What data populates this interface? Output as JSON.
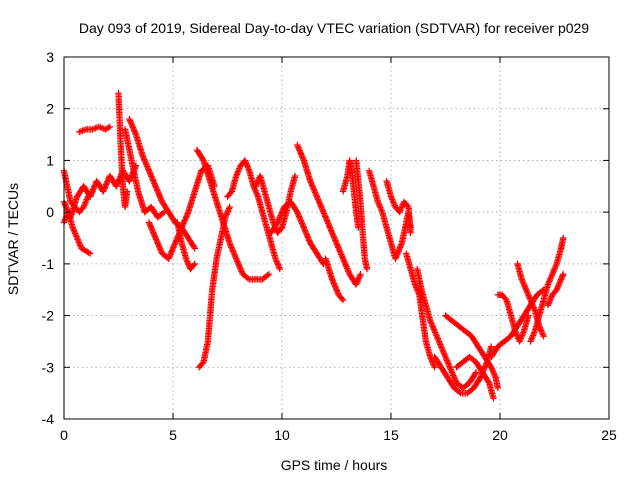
{
  "chart_data": {
    "type": "scatter",
    "title": "Day 093 of 2019, Sidereal Day-to-day VTEC variation (SDTVAR) for receiver p029",
    "xlabel": "GPS time / hours",
    "ylabel": "SDTVAR / TECUs",
    "xlim": [
      0,
      25
    ],
    "ylim": [
      -4,
      3
    ],
    "xticks": [
      "0",
      "5",
      "10",
      "15",
      "20",
      "25"
    ],
    "yticks": [
      "-4",
      "-3",
      "-2",
      "-1",
      "0",
      "1",
      "2",
      "3"
    ],
    "grid": true,
    "marker": "+",
    "colors": {
      "series": "#ff0000",
      "grid": "#a0a0a0",
      "axis": "#000000"
    },
    "series": [
      {
        "name": "SDTVAR",
        "tracks": [
          [
            [
              0.0,
              0.2
            ],
            [
              0.3,
              -0.1
            ],
            [
              0.6,
              0.3
            ],
            [
              0.9,
              0.5
            ],
            [
              1.2,
              0.3
            ],
            [
              1.5,
              0.6
            ],
            [
              1.8,
              0.4
            ],
            [
              2.1,
              0.7
            ],
            [
              2.4,
              0.5
            ],
            [
              2.7,
              0.8
            ],
            [
              3.0,
              0.6
            ],
            [
              3.3,
              0.9
            ]
          ],
          [
            [
              0.0,
              -0.2
            ],
            [
              0.2,
              0.0
            ],
            [
              0.4,
              -0.3
            ],
            [
              0.6,
              -0.5
            ],
            [
              0.8,
              -0.7
            ],
            [
              1.0,
              -0.75
            ],
            [
              1.2,
              -0.8
            ]
          ],
          [
            [
              0.0,
              0.8
            ],
            [
              0.15,
              0.5
            ],
            [
              0.3,
              0.2
            ],
            [
              0.5,
              0.1
            ],
            [
              0.7,
              0.0
            ],
            [
              0.9,
              0.1
            ],
            [
              1.1,
              0.3
            ],
            [
              1.3,
              0.4
            ]
          ],
          [
            [
              0.7,
              1.55
            ],
            [
              1.0,
              1.6
            ],
            [
              1.3,
              1.6
            ],
            [
              1.6,
              1.65
            ],
            [
              1.9,
              1.6
            ],
            [
              2.1,
              1.65
            ]
          ],
          [
            [
              2.5,
              2.3
            ],
            [
              2.55,
              1.8
            ],
            [
              2.6,
              1.3
            ],
            [
              2.65,
              0.9
            ],
            [
              2.7,
              0.5
            ],
            [
              2.8,
              0.1
            ],
            [
              2.9,
              0.4
            ]
          ],
          [
            [
              3.0,
              1.8
            ],
            [
              3.3,
              1.5
            ],
            [
              3.6,
              1.1
            ],
            [
              3.9,
              0.8
            ],
            [
              4.2,
              0.5
            ],
            [
              4.5,
              0.2
            ],
            [
              4.8,
              0.0
            ],
            [
              5.1,
              -0.2
            ],
            [
              5.4,
              -0.3
            ],
            [
              5.7,
              -0.5
            ],
            [
              6.0,
              -0.7
            ]
          ],
          [
            [
              2.8,
              1.6
            ],
            [
              3.1,
              1.0
            ],
            [
              3.4,
              0.4
            ],
            [
              3.7,
              0.0
            ],
            [
              4.0,
              0.1
            ],
            [
              4.3,
              -0.1
            ],
            [
              4.6,
              0.0
            ]
          ],
          [
            [
              3.9,
              -0.2
            ],
            [
              4.2,
              -0.5
            ],
            [
              4.5,
              -0.8
            ],
            [
              4.8,
              -0.9
            ],
            [
              5.1,
              -0.6
            ],
            [
              5.4,
              -0.3
            ],
            [
              5.7,
              0.0
            ],
            [
              6.0,
              0.4
            ],
            [
              6.3,
              0.8
            ],
            [
              6.6,
              0.9
            ],
            [
              6.9,
              0.5
            ]
          ],
          [
            [
              5.2,
              -0.2
            ],
            [
              5.4,
              -0.6
            ],
            [
              5.6,
              -0.9
            ],
            [
              5.8,
              -1.1
            ],
            [
              6.0,
              -1.0
            ]
          ],
          [
            [
              6.1,
              1.2
            ],
            [
              6.4,
              1.0
            ],
            [
              6.7,
              0.6
            ],
            [
              7.0,
              0.2
            ],
            [
              7.3,
              -0.2
            ],
            [
              7.6,
              -0.6
            ],
            [
              7.9,
              -0.9
            ],
            [
              8.2,
              -1.2
            ],
            [
              8.5,
              -1.3
            ],
            [
              8.8,
              -1.3
            ],
            [
              9.1,
              -1.3
            ],
            [
              9.4,
              -1.2
            ]
          ],
          [
            [
              6.2,
              -3.0
            ],
            [
              6.4,
              -2.9
            ],
            [
              6.6,
              -2.5
            ],
            [
              6.7,
              -2.0
            ],
            [
              6.8,
              -1.5
            ],
            [
              6.9,
              -1.2
            ],
            [
              7.0,
              -0.9
            ],
            [
              7.2,
              -0.5
            ],
            [
              7.4,
              -0.1
            ],
            [
              7.6,
              0.1
            ]
          ],
          [
            [
              7.5,
              0.3
            ],
            [
              7.7,
              0.4
            ],
            [
              7.9,
              0.7
            ],
            [
              8.1,
              0.9
            ],
            [
              8.3,
              1.0
            ],
            [
              8.5,
              0.8
            ],
            [
              8.7,
              0.5
            ],
            [
              8.9,
              0.3
            ],
            [
              9.1,
              0.0
            ],
            [
              9.3,
              -0.3
            ],
            [
              9.5,
              -0.6
            ],
            [
              9.7,
              -0.9
            ],
            [
              9.9,
              -1.1
            ]
          ],
          [
            [
              8.8,
              0.5
            ],
            [
              9.0,
              0.7
            ],
            [
              9.2,
              0.4
            ],
            [
              9.4,
              0.1
            ],
            [
              9.6,
              -0.2
            ],
            [
              9.8,
              -0.4
            ],
            [
              10.0,
              -0.3
            ],
            [
              10.2,
              0.0
            ],
            [
              10.4,
              0.4
            ],
            [
              10.6,
              0.7
            ]
          ],
          [
            [
              9.5,
              -0.4
            ],
            [
              9.8,
              -0.2
            ],
            [
              10.1,
              0.1
            ],
            [
              10.4,
              0.2
            ],
            [
              10.7,
              0.0
            ],
            [
              11.0,
              -0.3
            ],
            [
              11.3,
              -0.6
            ],
            [
              11.6,
              -0.8
            ],
            [
              11.9,
              -1.0
            ]
          ],
          [
            [
              10.7,
              1.3
            ],
            [
              11.0,
              1.0
            ],
            [
              11.3,
              0.6
            ],
            [
              11.6,
              0.3
            ],
            [
              11.9,
              0.0
            ],
            [
              12.2,
              -0.3
            ],
            [
              12.5,
              -0.6
            ],
            [
              12.8,
              -0.9
            ],
            [
              13.1,
              -1.2
            ],
            [
              13.4,
              -1.4
            ],
            [
              13.6,
              -1.2
            ]
          ],
          [
            [
              12.0,
              -0.9
            ],
            [
              12.3,
              -1.3
            ],
            [
              12.6,
              -1.6
            ],
            [
              12.8,
              -1.7
            ]
          ],
          [
            [
              12.8,
              0.4
            ],
            [
              13.0,
              0.7
            ],
            [
              13.1,
              1.0
            ],
            [
              13.2,
              0.8
            ],
            [
              13.3,
              0.4
            ],
            [
              13.4,
              0.0
            ],
            [
              13.5,
              -0.3
            ]
          ],
          [
            [
              13.4,
              1.0
            ],
            [
              13.5,
              0.6
            ],
            [
              13.6,
              0.2
            ],
            [
              13.7,
              -0.4
            ],
            [
              13.8,
              -0.9
            ],
            [
              13.9,
              -1.1
            ]
          ],
          [
            [
              14.0,
              0.8
            ],
            [
              14.2,
              0.5
            ],
            [
              14.4,
              0.2
            ],
            [
              14.6,
              0.0
            ],
            [
              14.8,
              -0.3
            ],
            [
              15.0,
              -0.6
            ],
            [
              15.2,
              -0.9
            ],
            [
              15.5,
              -0.6
            ],
            [
              15.8,
              0.0
            ],
            [
              15.9,
              -0.3
            ]
          ],
          [
            [
              14.8,
              0.6
            ],
            [
              15.0,
              0.3
            ],
            [
              15.2,
              0.1
            ],
            [
              15.4,
              0.0
            ],
            [
              15.6,
              0.2
            ],
            [
              15.8,
              0.1
            ],
            [
              15.9,
              -0.4
            ]
          ],
          [
            [
              15.7,
              -0.8
            ],
            [
              15.9,
              -1.1
            ],
            [
              16.1,
              -1.4
            ],
            [
              16.3,
              -1.6
            ],
            [
              16.4,
              -1.9
            ],
            [
              16.5,
              -2.2
            ],
            [
              16.6,
              -2.5
            ],
            [
              16.8,
              -2.8
            ],
            [
              17.0,
              -3.0
            ]
          ],
          [
            [
              16.2,
              -1.1
            ],
            [
              16.4,
              -1.5
            ],
            [
              16.6,
              -1.8
            ],
            [
              16.8,
              -2.1
            ],
            [
              17.0,
              -2.3
            ],
            [
              17.2,
              -2.5
            ],
            [
              17.4,
              -2.7
            ],
            [
              17.6,
              -2.9
            ],
            [
              17.8,
              -3.1
            ],
            [
              18.0,
              -3.3
            ],
            [
              18.3,
              -3.4
            ],
            [
              18.6,
              -3.3
            ],
            [
              18.9,
              -3.1
            ]
          ],
          [
            [
              17.0,
              -2.8
            ],
            [
              17.3,
              -3.0
            ],
            [
              17.6,
              -3.2
            ],
            [
              17.9,
              -3.4
            ],
            [
              18.2,
              -3.5
            ],
            [
              18.5,
              -3.5
            ],
            [
              18.8,
              -3.4
            ],
            [
              19.1,
              -3.2
            ],
            [
              19.4,
              -2.9
            ],
            [
              19.6,
              -2.6
            ]
          ],
          [
            [
              17.5,
              -2.0
            ],
            [
              17.8,
              -2.1
            ],
            [
              18.1,
              -2.2
            ],
            [
              18.4,
              -2.3
            ],
            [
              18.7,
              -2.4
            ],
            [
              19.0,
              -2.6
            ],
            [
              19.3,
              -2.8
            ],
            [
              19.6,
              -3.0
            ],
            [
              19.8,
              -3.2
            ],
            [
              19.9,
              -3.4
            ]
          ],
          [
            [
              18.0,
              -3.0
            ],
            [
              18.3,
              -2.9
            ],
            [
              18.6,
              -2.8
            ],
            [
              18.9,
              -2.9
            ],
            [
              19.2,
              -3.1
            ],
            [
              19.5,
              -3.3
            ],
            [
              19.7,
              -3.6
            ]
          ],
          [
            [
              19.9,
              -1.6
            ],
            [
              20.1,
              -1.6
            ],
            [
              20.3,
              -1.7
            ],
            [
              20.5,
              -2.0
            ],
            [
              20.7,
              -2.3
            ],
            [
              20.9,
              -2.5
            ],
            [
              21.1,
              -2.3
            ],
            [
              21.3,
              -2.0
            ]
          ],
          [
            [
              19.6,
              -2.8
            ],
            [
              19.9,
              -2.6
            ],
            [
              20.2,
              -2.5
            ],
            [
              20.5,
              -2.4
            ],
            [
              20.8,
              -2.2
            ],
            [
              21.1,
              -2.0
            ],
            [
              21.4,
              -1.8
            ],
            [
              21.7,
              -1.6
            ],
            [
              22.0,
              -1.5
            ]
          ],
          [
            [
              20.8,
              -1.0
            ],
            [
              21.0,
              -1.3
            ],
            [
              21.2,
              -1.5
            ],
            [
              21.4,
              -1.7
            ],
            [
              21.6,
              -1.9
            ],
            [
              21.8,
              -2.2
            ],
            [
              22.0,
              -2.4
            ]
          ],
          [
            [
              21.4,
              -2.5
            ],
            [
              21.6,
              -2.3
            ],
            [
              21.8,
              -2.0
            ],
            [
              22.0,
              -1.7
            ],
            [
              22.2,
              -1.4
            ],
            [
              22.4,
              -1.2
            ],
            [
              22.6,
              -1.0
            ],
            [
              22.8,
              -0.7
            ],
            [
              22.9,
              -0.5
            ]
          ],
          [
            [
              22.2,
              -1.8
            ],
            [
              22.4,
              -1.6
            ],
            [
              22.6,
              -1.5
            ],
            [
              22.8,
              -1.3
            ],
            [
              22.9,
              -1.2
            ]
          ]
        ]
      }
    ]
  }
}
